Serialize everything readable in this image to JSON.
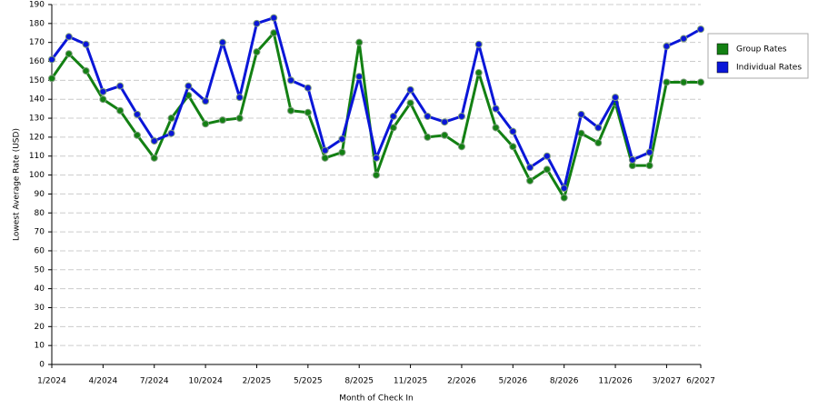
{
  "chart_data": {
    "type": "line",
    "x_label": "Month of Check In",
    "y_label": "Lowest Average Rate (USD)",
    "categories": [
      "1/2024",
      null,
      null,
      "4/2024",
      null,
      null,
      "7/2024",
      null,
      null,
      "10/2024",
      null,
      null,
      "2/2025",
      null,
      null,
      "5/2025",
      null,
      null,
      "8/2025",
      null,
      null,
      "11/2025",
      null,
      null,
      "2/2026",
      null,
      null,
      "5/2026",
      null,
      null,
      "8/2026",
      null,
      null,
      "11/2026",
      null,
      null,
      "3/2027",
      null,
      "6/2027"
    ],
    "series": [
      {
        "name": "Group Rates",
        "color": "#138013",
        "values": [
          151,
          164,
          155,
          140,
          134,
          121,
          109,
          130,
          142,
          127,
          129,
          130,
          165,
          175,
          134,
          133,
          109,
          112,
          170,
          100,
          125,
          138,
          120,
          121,
          115,
          154,
          125,
          115,
          97,
          103,
          88,
          122,
          117,
          138,
          105,
          105,
          149,
          149,
          149
        ]
      },
      {
        "name": "Individual Rates",
        "color": "#0a16d8",
        "values": [
          161,
          173,
          169,
          144,
          147,
          132,
          118,
          122,
          147,
          139,
          170,
          141,
          180,
          183,
          150,
          146,
          113,
          119,
          152,
          109,
          131,
          145,
          131,
          128,
          131,
          169,
          135,
          123,
          104,
          110,
          93,
          132,
          125,
          141,
          108,
          112,
          168,
          172,
          177
        ]
      }
    ],
    "ylim": [
      0,
      190
    ],
    "yticks": [
      0,
      10,
      20,
      30,
      40,
      50,
      60,
      70,
      80,
      90,
      100,
      110,
      120,
      130,
      140,
      150,
      160,
      170,
      180,
      190
    ],
    "grid": true,
    "legend": "right"
  }
}
